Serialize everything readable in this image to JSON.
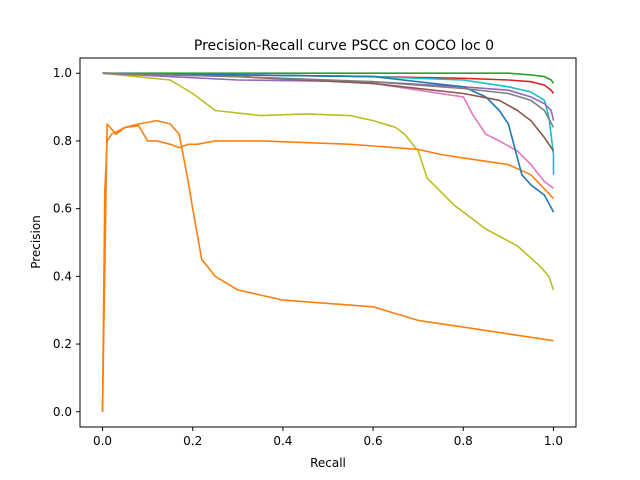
{
  "chart_data": {
    "type": "line",
    "title": "Precision-Recall curve PSCC on COCO loc 0",
    "xlabel": "Recall",
    "ylabel": "Precision",
    "xlim": [
      -0.05,
      1.05
    ],
    "ylim": [
      -0.045,
      1.045
    ],
    "xticks": [
      "0.0",
      "0.2",
      "0.4",
      "0.6",
      "0.8",
      "1.0"
    ],
    "yticks": [
      "0.0",
      "0.2",
      "0.4",
      "0.6",
      "0.8",
      "1.0"
    ],
    "grid": false,
    "legend": "none",
    "series": [
      {
        "color": "#2ca02c",
        "x": [
          0,
          0.2,
          0.4,
          0.6,
          0.8,
          0.9,
          0.95,
          0.98,
          0.995,
          1.0
        ],
        "y": [
          1.0,
          1.0,
          1.0,
          1.0,
          1.0,
          1.0,
          0.995,
          0.99,
          0.98,
          0.97
        ]
      },
      {
        "color": "#d62728",
        "x": [
          0,
          0.3,
          0.6,
          0.8,
          0.9,
          0.95,
          0.98,
          0.995,
          1.0
        ],
        "y": [
          1.0,
          0.995,
          0.99,
          0.985,
          0.98,
          0.975,
          0.965,
          0.95,
          0.94
        ]
      },
      {
        "color": "#17becf",
        "x": [
          0,
          0.3,
          0.6,
          0.8,
          0.9,
          0.95,
          0.98,
          0.99,
          1.0,
          1.0
        ],
        "y": [
          1.0,
          0.995,
          0.99,
          0.98,
          0.96,
          0.945,
          0.92,
          0.87,
          0.76,
          0.7
        ]
      },
      {
        "color": "#bcbd22",
        "x": [
          0,
          0.15,
          0.2,
          0.25,
          0.35,
          0.45,
          0.55,
          0.6,
          0.65,
          0.67,
          0.7,
          0.72,
          0.78,
          0.85,
          0.92,
          0.97,
          0.99,
          1.0
        ],
        "y": [
          1.0,
          0.98,
          0.94,
          0.89,
          0.875,
          0.88,
          0.875,
          0.86,
          0.84,
          0.82,
          0.77,
          0.69,
          0.61,
          0.54,
          0.49,
          0.43,
          0.4,
          0.36
        ]
      },
      {
        "color": "#ff7f0e",
        "x": [
          0,
          0.01,
          0.03,
          0.05,
          0.08,
          0.1,
          0.12,
          0.15,
          0.17,
          0.19,
          0.21,
          0.25,
          0.3,
          0.35,
          0.45,
          0.55,
          0.6,
          0.65,
          0.7,
          0.75,
          0.8,
          0.85,
          0.9,
          0.95,
          1.0
        ],
        "y": [
          0.0,
          0.85,
          0.82,
          0.84,
          0.845,
          0.8,
          0.8,
          0.79,
          0.78,
          0.79,
          0.79,
          0.8,
          0.8,
          0.8,
          0.795,
          0.79,
          0.785,
          0.78,
          0.775,
          0.76,
          0.75,
          0.74,
          0.73,
          0.7,
          0.63
        ]
      },
      {
        "color": "#ff7f0e",
        "x": [
          0,
          0.005,
          0.01,
          0.02,
          0.05,
          0.08,
          0.12,
          0.15,
          0.17,
          0.19,
          0.2,
          0.22,
          0.25,
          0.3,
          0.4,
          0.5,
          0.6,
          0.7,
          0.8,
          0.9,
          1.0
        ],
        "y": [
          0.0,
          0.65,
          0.8,
          0.82,
          0.84,
          0.85,
          0.86,
          0.85,
          0.82,
          0.68,
          0.6,
          0.45,
          0.4,
          0.36,
          0.33,
          0.32,
          0.31,
          0.27,
          0.25,
          0.23,
          0.21
        ]
      },
      {
        "color": "#9467bd",
        "x": [
          0,
          0.3,
          0.6,
          0.8,
          0.9,
          0.95,
          0.98,
          0.995,
          1.0
        ],
        "y": [
          1.0,
          0.98,
          0.975,
          0.96,
          0.95,
          0.93,
          0.91,
          0.89,
          0.86
        ]
      },
      {
        "color": "#e377c2",
        "x": [
          0,
          0.3,
          0.6,
          0.8,
          0.82,
          0.85,
          0.88,
          0.92,
          0.95,
          0.98,
          1.0
        ],
        "y": [
          1.0,
          0.99,
          0.97,
          0.93,
          0.88,
          0.82,
          0.8,
          0.77,
          0.73,
          0.68,
          0.66
        ]
      },
      {
        "color": "#1f77b4",
        "x": [
          0,
          0.3,
          0.6,
          0.8,
          0.85,
          0.88,
          0.9,
          0.92,
          0.93,
          0.95,
          0.98,
          1.0
        ],
        "y": [
          1.0,
          0.995,
          0.99,
          0.96,
          0.93,
          0.89,
          0.85,
          0.75,
          0.7,
          0.67,
          0.64,
          0.59
        ]
      },
      {
        "color": "#8c564b",
        "x": [
          0,
          0.3,
          0.6,
          0.8,
          0.88,
          0.92,
          0.95,
          0.98,
          1.0
        ],
        "y": [
          1.0,
          0.99,
          0.97,
          0.94,
          0.92,
          0.89,
          0.86,
          0.81,
          0.77
        ]
      },
      {
        "color": "#7f7f7f",
        "x": [
          0,
          0.3,
          0.6,
          0.8,
          0.9,
          0.95,
          0.98,
          1.0
        ],
        "y": [
          1.0,
          0.99,
          0.975,
          0.955,
          0.94,
          0.92,
          0.89,
          0.84
        ]
      }
    ]
  }
}
